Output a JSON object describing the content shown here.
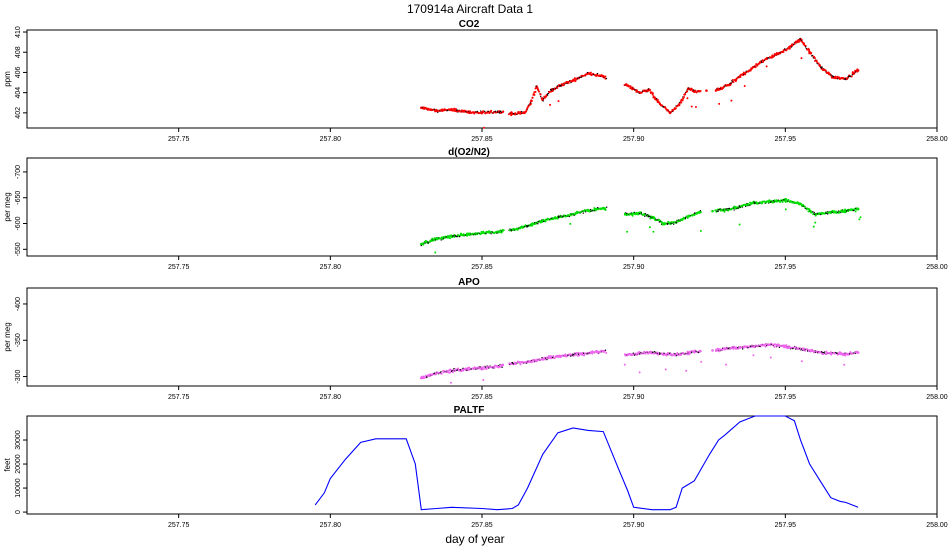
{
  "figure": {
    "title": "170914a   Aircraft Data 1",
    "xlabel": "day of year"
  },
  "chart_data": [
    {
      "type": "scatter",
      "title": "CO2",
      "ylabel": "ppm",
      "color": "#ff0000",
      "xlim": [
        257.7,
        258.0
      ],
      "ylim": [
        400.5,
        410.2
      ],
      "xticks": [
        257.75,
        257.8,
        257.85,
        257.9,
        257.95,
        258.0
      ],
      "xtick_labels": [
        "257.75",
        "257.80",
        "257.85",
        "257.90",
        "257.95",
        "258.00"
      ],
      "yticks": [
        402,
        404,
        406,
        408,
        410
      ],
      "ytick_labels": [
        "402",
        "404",
        "406",
        "408",
        "410"
      ],
      "series": [
        {
          "x": [
            257.83,
            257.835,
            257.84,
            257.845,
            257.85,
            257.856,
            257.86,
            257.864,
            257.866,
            257.868,
            257.87,
            257.873,
            257.876,
            257.88,
            257.885,
            257.89,
            257.898,
            257.902,
            257.905,
            257.908,
            257.912,
            257.915,
            257.918,
            257.92,
            257.924,
            257.928,
            257.932,
            257.936,
            257.94,
            257.944,
            257.948,
            257.952,
            257.955,
            257.958,
            257.962,
            257.966,
            257.97,
            257.974
          ],
          "y": [
            402.5,
            402.2,
            402.3,
            402.1,
            402.0,
            402.1,
            401.9,
            402.0,
            402.9,
            404.6,
            403.3,
            404.3,
            404.7,
            405.2,
            405.9,
            405.6,
            404.7,
            404.0,
            404.3,
            403.1,
            402.0,
            402.8,
            404.4,
            404.1,
            404.2,
            404.3,
            404.9,
            405.8,
            406.6,
            407.4,
            407.9,
            408.6,
            409.3,
            408.0,
            406.4,
            405.5,
            405.4,
            406.2
          ]
        }
      ]
    },
    {
      "type": "scatter",
      "title": "d(O2/N2)",
      "ylabel": "per meg",
      "color": "#00e000",
      "xlim": [
        257.7,
        258.0
      ],
      "ylim": [
        -727,
        -537
      ],
      "y_inverted": true,
      "xticks": [
        257.75,
        257.8,
        257.85,
        257.9,
        257.95,
        258.0
      ],
      "xtick_labels": [
        "257.75",
        "257.80",
        "257.85",
        "257.90",
        "257.95",
        "258.00"
      ],
      "yticks": [
        -550,
        -600,
        -650,
        -700
      ],
      "ytick_labels": [
        "-550",
        "-600",
        "-650",
        "-700"
      ],
      "series": [
        {
          "x": [
            257.83,
            257.835,
            257.84,
            257.845,
            257.85,
            257.855,
            257.86,
            257.865,
            257.87,
            257.875,
            257.88,
            257.885,
            257.89,
            257.898,
            257.902,
            257.906,
            257.91,
            257.914,
            257.918,
            257.922,
            257.926,
            257.93,
            257.935,
            257.94,
            257.945,
            257.95,
            257.955,
            257.96,
            257.965,
            257.97,
            257.974
          ],
          "y": [
            -560,
            -570,
            -575,
            -578,
            -582,
            -583,
            -588,
            -595,
            -605,
            -612,
            -618,
            -625,
            -630,
            -618,
            -620,
            -612,
            -600,
            -602,
            -614,
            -622,
            -624,
            -626,
            -632,
            -640,
            -642,
            -645,
            -638,
            -618,
            -622,
            -624,
            -628
          ]
        }
      ]
    },
    {
      "type": "scatter",
      "title": "APO",
      "ylabel": "per meg",
      "color": "#ee66ee",
      "xlim": [
        257.7,
        258.0
      ],
      "ylim": [
        -422,
        -287
      ],
      "y_inverted": true,
      "xticks": [
        257.75,
        257.8,
        257.85,
        257.9,
        257.95,
        258.0
      ],
      "xtick_labels": [
        "257.75",
        "257.80",
        "257.85",
        "257.90",
        "257.95",
        "258.00"
      ],
      "yticks": [
        -300,
        -350,
        -400
      ],
      "ytick_labels": [
        "-300",
        "-350",
        "-400"
      ],
      "series": [
        {
          "x": [
            257.83,
            257.835,
            257.84,
            257.845,
            257.85,
            257.855,
            257.86,
            257.865,
            257.87,
            257.875,
            257.88,
            257.885,
            257.89,
            257.898,
            257.902,
            257.906,
            257.91,
            257.914,
            257.918,
            257.922,
            257.926,
            257.93,
            257.935,
            257.94,
            257.945,
            257.95,
            257.955,
            257.96,
            257.965,
            257.97,
            257.974
          ],
          "y": [
            -298,
            -305,
            -308,
            -310,
            -312,
            -314,
            -318,
            -320,
            -324,
            -328,
            -330,
            -332,
            -335,
            -330,
            -332,
            -333,
            -331,
            -330,
            -333,
            -335,
            -336,
            -338,
            -340,
            -342,
            -344,
            -341,
            -338,
            -334,
            -332,
            -331,
            -333
          ]
        }
      ]
    },
    {
      "type": "line",
      "title": "PALTF",
      "ylabel": "feet",
      "color": "#0000ff",
      "xlim": [
        257.7,
        258.0
      ],
      "ylim": [
        -800,
        40000
      ],
      "xticks": [
        257.75,
        257.8,
        257.85,
        257.9,
        257.95,
        258.0
      ],
      "xtick_labels": [
        "257.75",
        "257.80",
        "257.85",
        "257.90",
        "257.95",
        "258.00"
      ],
      "yticks": [
        0,
        10000,
        20000,
        30000
      ],
      "ytick_labels": [
        "0",
        "10000",
        "20000",
        "30000"
      ],
      "series": [
        {
          "x": [
            257.795,
            257.798,
            257.8,
            257.805,
            257.81,
            257.815,
            257.82,
            257.825,
            257.828,
            257.83,
            257.835,
            257.84,
            257.85,
            257.855,
            257.86,
            257.862,
            257.865,
            257.87,
            257.875,
            257.88,
            257.885,
            257.89,
            257.895,
            257.898,
            257.9,
            257.906,
            257.912,
            257.914,
            257.916,
            257.92,
            257.925,
            257.928,
            257.93,
            257.935,
            257.94,
            257.945,
            257.95,
            257.953,
            257.955,
            257.958,
            257.962,
            257.965,
            257.968,
            257.97,
            257.974
          ],
          "y": [
            3000,
            8000,
            14000,
            22000,
            29000,
            30500,
            30500,
            30500,
            20000,
            1000,
            1500,
            2000,
            1500,
            1000,
            1500,
            3000,
            10000,
            24000,
            33000,
            35000,
            34000,
            33500,
            18000,
            9000,
            2000,
            1000,
            1000,
            2000,
            10000,
            13000,
            24000,
            30000,
            32000,
            37500,
            40000,
            40000,
            40000,
            38000,
            30000,
            20000,
            12000,
            6000,
            4500,
            4000,
            2000
          ]
        }
      ]
    }
  ]
}
